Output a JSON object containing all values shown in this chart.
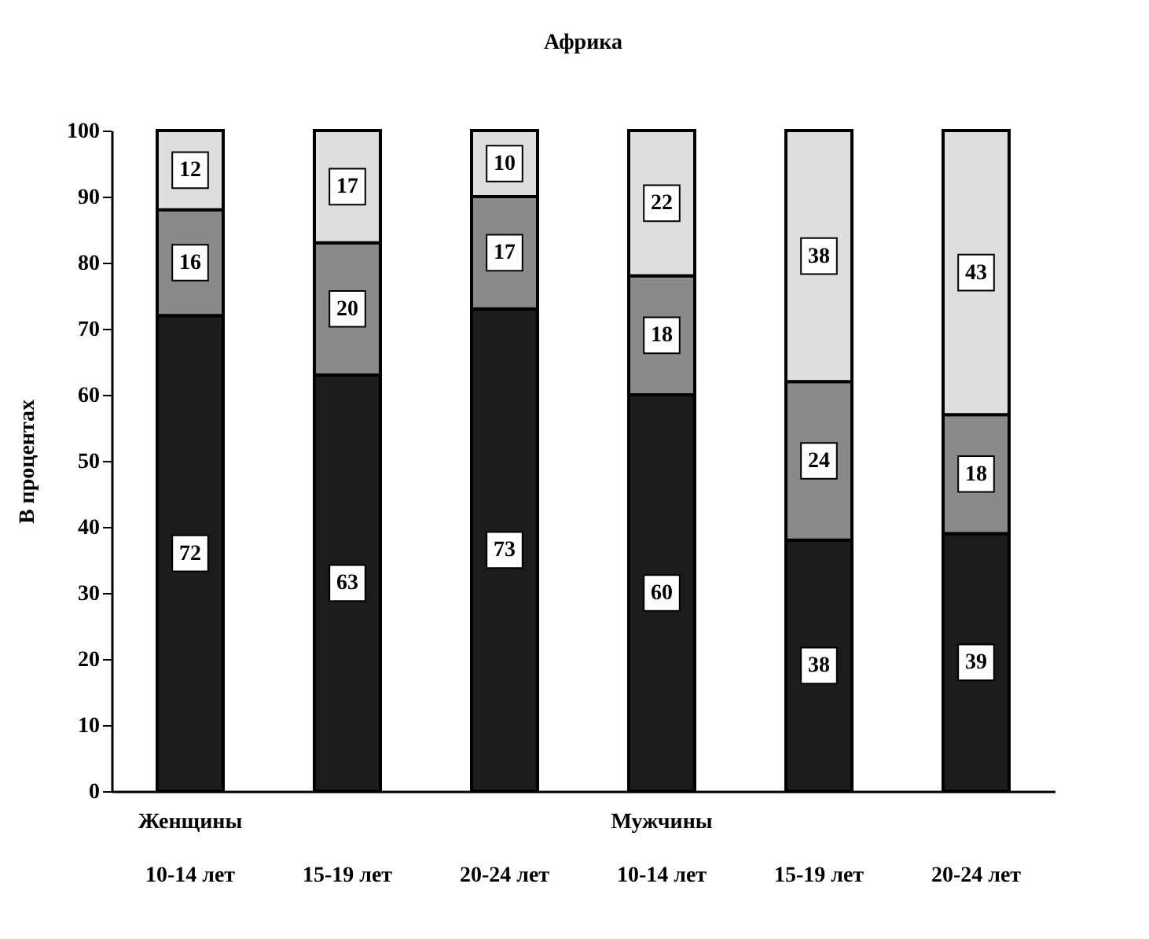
{
  "chart_data": {
    "type": "bar",
    "title": "Африка",
    "ylabel": "В процентах",
    "categories": [
      "Женщины\n10-14 лет",
      "\n15-19 лет",
      "\n20-24 лет",
      "Мужчины\n10-14 лет",
      "\n15-19 лет",
      "\n20-24 лет"
    ],
    "series": [
      {
        "color": "#1c1c1c",
        "values": [
          72,
          63,
          73,
          60,
          38,
          39
        ]
      },
      {
        "color": "#8a8a8a",
        "values": [
          16,
          20,
          17,
          18,
          24,
          18
        ]
      },
      {
        "color": "#dedede",
        "values": [
          12,
          17,
          10,
          22,
          38,
          43
        ]
      }
    ],
    "stacked": true,
    "data_labels": true,
    "ylim": [
      0,
      100
    ],
    "yticks": [
      0,
      10,
      20,
      30,
      40,
      50,
      60,
      70,
      80,
      90,
      100
    ],
    "grid": false
  }
}
